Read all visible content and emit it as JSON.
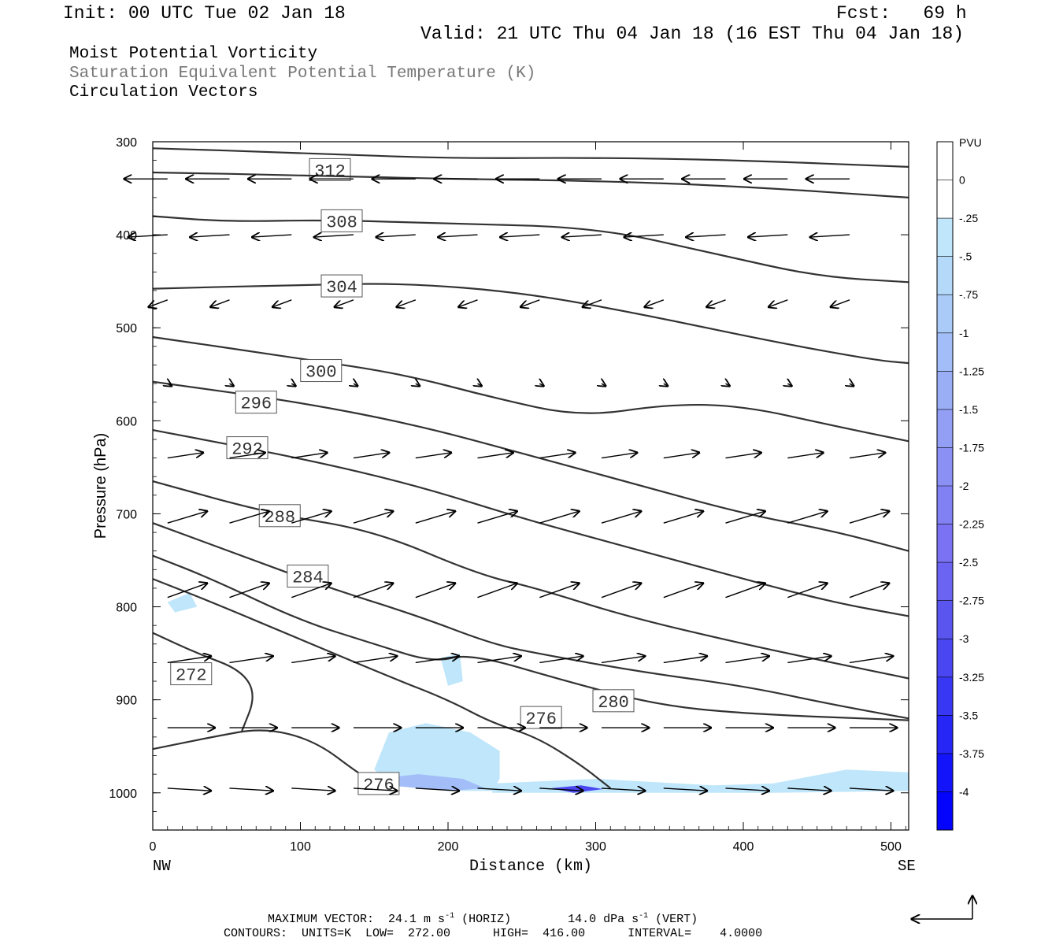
{
  "header": {
    "init": "Init: 00 UTC Tue 02 Jan 18",
    "fcst": "Fcst:   69 h",
    "valid": "Valid: 21 UTC Thu 04 Jan 18 (16 EST Thu 04 Jan 18)"
  },
  "legend": [
    {
      "label": "Moist Potential Vorticity",
      "color": "#000000"
    },
    {
      "label": "Saturation Equivalent Potential Temperature (K)",
      "color": "#777777"
    },
    {
      "label": "Circulation Vectors",
      "color": "#000000"
    }
  ],
  "footer": {
    "max_vector_label": "MAXIMUM VECTOR:",
    "horiz_value": "24.1 m s",
    "horiz_unit": "(HORIZ)",
    "vert_value": "14.0 dPa s",
    "vert_unit": "(VERT)",
    "contours": "CONTOURS:  UNITS=K  LOW=  272.00      HIGH=  416.00      INTERVAL=    4.0000"
  },
  "chart_data": {
    "type": "cross-section",
    "xlabel": "Distance (km)",
    "ylabel": "Pressure (hPa)",
    "xlim": [
      0,
      512
    ],
    "ylim": [
      1040,
      300
    ],
    "x_ticks": [
      0,
      100,
      200,
      300,
      400,
      500
    ],
    "y_ticks": [
      300,
      400,
      500,
      600,
      700,
      800,
      900,
      1000
    ],
    "x_end_labels": {
      "left": "NW",
      "right": "SE"
    },
    "colorbar": {
      "title": "PVU",
      "levels": [
        "0",
        "-.25",
        "-.5",
        "-.75",
        "-1",
        "-1.25",
        "-1.5",
        "-1.75",
        "-2",
        "-2.25",
        "-2.5",
        "-2.75",
        "-3",
        "-3.25",
        "-3.5",
        "-3.75",
        "-4"
      ],
      "colors": [
        "#ffffff",
        "#ffffff",
        "#bfe6fa",
        "#b4d9f9",
        "#aacbf8",
        "#a2bdf7",
        "#9aaef6",
        "#929ff5",
        "#8a90f4",
        "#8281f3",
        "#7a72f2",
        "#6b63f1",
        "#5b55f0",
        "#4a47f2",
        "#3838f4",
        "#2626f7",
        "#1414fa",
        "#0404fd"
      ]
    },
    "contours": [
      {
        "label": "312",
        "label_at": [
          120,
          330
        ],
        "points": [
          [
            0,
            307
          ],
          [
            100,
            312
          ],
          [
            200,
            318
          ],
          [
            300,
            317
          ],
          [
            400,
            320
          ],
          [
            512,
            327
          ]
        ]
      },
      {
        "label": "",
        "label_at": null,
        "points": [
          [
            0,
            333
          ],
          [
            100,
            336
          ],
          [
            200,
            340
          ],
          [
            300,
            342
          ],
          [
            400,
            348
          ],
          [
            512,
            360
          ]
        ]
      },
      {
        "label": "308",
        "label_at": [
          128,
          385
        ],
        "points": [
          [
            0,
            380
          ],
          [
            50,
            386
          ],
          [
            120,
            384
          ],
          [
            200,
            388
          ],
          [
            300,
            392
          ],
          [
            380,
            420
          ],
          [
            450,
            445
          ],
          [
            512,
            451
          ]
        ]
      },
      {
        "label": "304",
        "label_at": [
          128,
          455
        ],
        "points": [
          [
            0,
            458
          ],
          [
            100,
            454
          ],
          [
            170,
            452
          ],
          [
            250,
            462
          ],
          [
            330,
            485
          ],
          [
            420,
            515
          ],
          [
            490,
            535
          ],
          [
            512,
            538
          ]
        ]
      },
      {
        "label": "300",
        "label_at": [
          114,
          546
        ],
        "points": [
          [
            0,
            510
          ],
          [
            100,
            533
          ],
          [
            170,
            550
          ],
          [
            230,
            575
          ],
          [
            290,
            596
          ],
          [
            350,
            582
          ],
          [
            400,
            584
          ],
          [
            460,
            605
          ],
          [
            512,
            622
          ]
        ]
      },
      {
        "label": "296",
        "label_at": [
          70,
          580
        ],
        "points": [
          [
            0,
            558
          ],
          [
            100,
            580
          ],
          [
            180,
            605
          ],
          [
            250,
            635
          ],
          [
            320,
            665
          ],
          [
            400,
            700
          ],
          [
            460,
            718
          ],
          [
            512,
            740
          ]
        ]
      },
      {
        "label": "292",
        "label_at": [
          64,
          629
        ],
        "points": [
          [
            0,
            610
          ],
          [
            100,
            640
          ],
          [
            180,
            670
          ],
          [
            250,
            705
          ],
          [
            320,
            735
          ],
          [
            400,
            770
          ],
          [
            460,
            795
          ],
          [
            512,
            810
          ]
        ]
      },
      {
        "label": "288",
        "label_at": [
          86,
          702
        ],
        "points": [
          [
            0,
            665
          ],
          [
            80,
            700
          ],
          [
            150,
            718
          ],
          [
            220,
            765
          ],
          [
            260,
            780
          ],
          [
            320,
            810
          ],
          [
            400,
            840
          ],
          [
            460,
            860
          ],
          [
            512,
            877
          ]
        ]
      },
      {
        "label": "284",
        "label_at": [
          105,
          767
        ],
        "points": [
          [
            0,
            710
          ],
          [
            60,
            745
          ],
          [
            120,
            780
          ],
          [
            180,
            810
          ],
          [
            230,
            840
          ],
          [
            260,
            850
          ],
          [
            330,
            870
          ],
          [
            400,
            885
          ],
          [
            460,
            905
          ],
          [
            512,
            920
          ]
        ]
      },
      {
        "label": "280",
        "label_at": [
          312,
          901
        ],
        "points": [
          [
            0,
            745
          ],
          [
            40,
            770
          ],
          [
            100,
            815
          ],
          [
            150,
            840
          ],
          [
            190,
            860
          ],
          [
            215,
            850
          ],
          [
            280,
            880
          ],
          [
            340,
            905
          ],
          [
            400,
            915
          ],
          [
            512,
            922
          ]
        ]
      },
      {
        "label": "276",
        "label_at": [
          263,
          919
        ],
        "points": [
          [
            0,
            770
          ],
          [
            40,
            795
          ],
          [
            100,
            835
          ],
          [
            160,
            875
          ],
          [
            200,
            900
          ],
          [
            230,
            925
          ],
          [
            260,
            940
          ],
          [
            290,
            970
          ],
          [
            310,
            995
          ]
        ]
      },
      {
        "label": "272",
        "label_at": [
          26,
          872
        ],
        "points": [
          [
            0,
            828
          ],
          [
            30,
            850
          ],
          [
            60,
            868
          ],
          [
            70,
            895
          ],
          [
            60,
            935
          ]
        ]
      },
      {
        "label": "276",
        "label_at": [
          153,
          990
        ],
        "points": [
          [
            0,
            953
          ],
          [
            40,
            940
          ],
          [
            75,
            930
          ],
          [
            110,
            944
          ],
          [
            140,
            980
          ],
          [
            150,
            988
          ]
        ]
      }
    ],
    "vector_scale": {
      "horiz_max": 24.1,
      "vert_max": 14.0
    }
  }
}
